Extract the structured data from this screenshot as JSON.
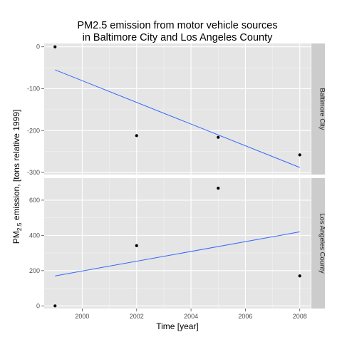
{
  "chart_data": {
    "type": "scatter",
    "title": "PM2.5 emission from motor vehicle sources",
    "subtitle": "in Baltimore City and Los Angeles County",
    "xlabel": "Time [year]",
    "ylabel_prefix": "PM",
    "ylabel_sub": "2.5",
    "ylabel_suffix": " emission, [tons relative 1999]",
    "grid": true,
    "xlim": [
      1998.6,
      2008.4
    ],
    "x_ticks": [
      2000,
      2002,
      2004,
      2006,
      2008
    ],
    "x_tick_labels": [
      "2000",
      "2002",
      "2004",
      "2006",
      "2008"
    ],
    "panels": [
      {
        "strip_label": "Baltimore City",
        "ylim": [
          -305,
          8
        ],
        "y_ticks": [
          0,
          -100,
          -200,
          -300
        ],
        "y_tick_labels": [
          "0",
          "-100",
          "-200",
          "-300"
        ],
        "points": [
          {
            "x": 1999,
            "y": 0
          },
          {
            "x": 2002,
            "y": -212
          },
          {
            "x": 2005,
            "y": -216
          },
          {
            "x": 2008,
            "y": -258
          }
        ],
        "trend": {
          "x": [
            1999,
            2008
          ],
          "y": [
            -55,
            -288
          ]
        }
      },
      {
        "strip_label": "Los Angeles County",
        "ylim": [
          -15,
          725
        ],
        "y_ticks": [
          0,
          200,
          400,
          600
        ],
        "y_tick_labels": [
          "0",
          "200",
          "400",
          "600"
        ],
        "points": [
          {
            "x": 1999,
            "y": 0
          },
          {
            "x": 2002,
            "y": 342
          },
          {
            "x": 2005,
            "y": 668
          },
          {
            "x": 2008,
            "y": 170
          }
        ],
        "trend": {
          "x": [
            1999,
            2008
          ],
          "y": [
            170,
            420
          ]
        }
      }
    ],
    "colors": {
      "panel_background": "#e5e5e5",
      "gridline_major": "#ffffff",
      "gridline_minor": "#f2f2f2",
      "strip_background": "#cccccc",
      "point": "#000000",
      "trend_line": "#3366ff"
    }
  }
}
